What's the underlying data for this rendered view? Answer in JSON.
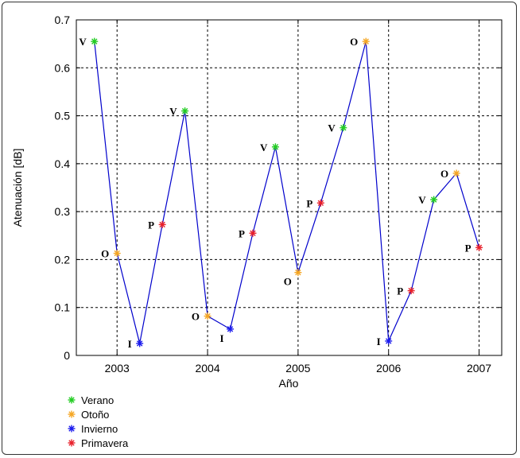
{
  "chart_data": {
    "type": "line",
    "xlabel": "Año",
    "ylabel": "Atenuación [dB]",
    "xlim": [
      2002.55,
      2007.25
    ],
    "ylim": [
      0,
      0.7
    ],
    "x_ticks": [
      2003,
      2004,
      2005,
      2006,
      2007
    ],
    "x_tick_labels": [
      "2003",
      "2004",
      "2005",
      "2006",
      "2007"
    ],
    "y_ticks": [
      0,
      0.1,
      0.2,
      0.3,
      0.4,
      0.5,
      0.6,
      0.7
    ],
    "y_tick_labels": [
      "0",
      "0.1",
      "0.2",
      "0.3",
      "0.4",
      "0.5",
      "0.6",
      "0.7"
    ],
    "grid": true,
    "line_color": "#0000cc",
    "points": [
      {
        "x": 2002.75,
        "y": 0.655,
        "season": "Verano",
        "label": "V"
      },
      {
        "x": 2003.0,
        "y": 0.213,
        "season": "Otoño",
        "label": "O"
      },
      {
        "x": 2003.25,
        "y": 0.025,
        "season": "Invierno",
        "label": "I"
      },
      {
        "x": 2003.5,
        "y": 0.273,
        "season": "Primavera",
        "label": "P"
      },
      {
        "x": 2003.75,
        "y": 0.51,
        "season": "Verano",
        "label": "V"
      },
      {
        "x": 2004.0,
        "y": 0.082,
        "season": "Otoño",
        "label": "O"
      },
      {
        "x": 2004.25,
        "y": 0.055,
        "season": "Invierno",
        "label": "I"
      },
      {
        "x": 2004.5,
        "y": 0.255,
        "season": "Primavera",
        "label": "P"
      },
      {
        "x": 2004.75,
        "y": 0.435,
        "season": "Verano",
        "label": "V"
      },
      {
        "x": 2005.0,
        "y": 0.173,
        "season": "Otoño",
        "label": "O"
      },
      {
        "x": 2005.25,
        "y": 0.318,
        "season": "Primavera",
        "label": "P"
      },
      {
        "x": 2005.5,
        "y": 0.475,
        "season": "Verano",
        "label": "V"
      },
      {
        "x": 2005.75,
        "y": 0.655,
        "season": "Otoño",
        "label": "O"
      },
      {
        "x": 2006.0,
        "y": 0.03,
        "season": "Invierno",
        "label": "I"
      },
      {
        "x": 2006.25,
        "y": 0.135,
        "season": "Primavera",
        "label": "P"
      },
      {
        "x": 2006.5,
        "y": 0.325,
        "season": "Verano",
        "label": "V"
      },
      {
        "x": 2006.75,
        "y": 0.38,
        "season": "Otoño",
        "label": "O"
      },
      {
        "x": 2007.0,
        "y": 0.225,
        "season": "Primavera",
        "label": "P"
      }
    ],
    "label_side": [
      "left",
      "left",
      "left",
      "left",
      "left",
      "left",
      "below-left",
      "left",
      "left",
      "below-left",
      "left",
      "left",
      "left",
      "left",
      "left",
      "left",
      "left",
      "left"
    ],
    "legend": [
      {
        "name": "Verano",
        "color": "#22cc22"
      },
      {
        "name": "Otoño",
        "color": "#f5a623"
      },
      {
        "name": "Invierno",
        "color": "#1a1aee"
      },
      {
        "name": "Primavera",
        "color": "#e8202a"
      }
    ]
  }
}
